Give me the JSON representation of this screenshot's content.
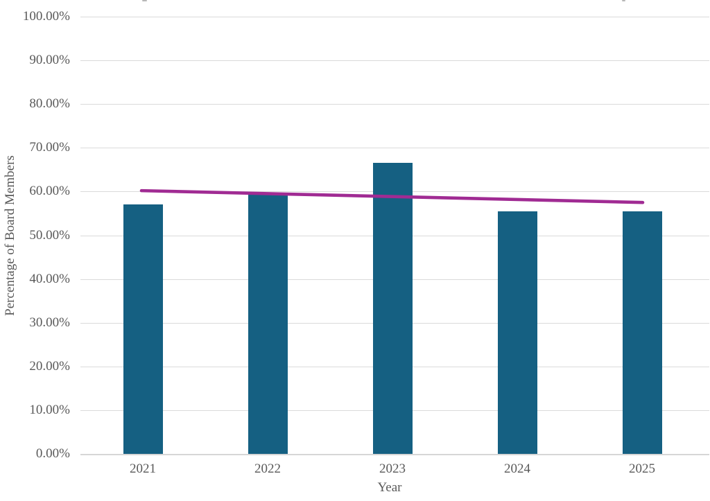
{
  "chart_data": {
    "type": "bar",
    "title": "",
    "categories": [
      "2021",
      "2022",
      "2023",
      "2024",
      "2025"
    ],
    "series": [
      {
        "name": "Percentage of Board Members",
        "type": "bar",
        "color": "#156082",
        "values": [
          57.1,
          59.4,
          66.6,
          55.5,
          55.5
        ]
      },
      {
        "name": "Linear trendline",
        "type": "line",
        "color": "#A02B93",
        "start_value": 60.2,
        "end_value": 57.5
      }
    ],
    "xlabel": "Year",
    "ylabel": "Percentage of Board Members",
    "ylim": [
      0,
      100
    ],
    "ytick_step": 10,
    "ytick_labels": [
      "0.00%",
      "10.00%",
      "20.00%",
      "30.00%",
      "40.00%",
      "50.00%",
      "60.00%",
      "70.00%",
      "80.00%",
      "90.00%",
      "100.00%"
    ],
    "grid": true,
    "legend_position": "none"
  },
  "colors": {
    "bar_fill": "#156082",
    "trend_line": "#A02B93",
    "gridline": "#DADADA",
    "axis_text": "#595959",
    "background": "#FFFFFF"
  }
}
